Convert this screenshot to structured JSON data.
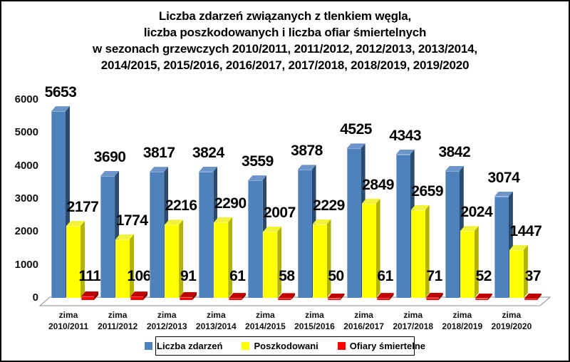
{
  "chart_data": {
    "type": "bar",
    "style": "3d-clustered-column",
    "title_lines": [
      "Liczba zdarzeń związanych z tlenkiem węgla,",
      "liczba poszkodowanych i liczba ofiar śmiertelnych",
      "w sezonach grzewczych 2010/2011, 2011/2012, 2012/2013, 2013/2014,",
      "2014/2015, 2015/2016, 2016/2017, 2017/2018, 2018/2019, 2019/2020"
    ],
    "categories": [
      {
        "line1": "zima",
        "line2": "2010/2011"
      },
      {
        "line1": "zima",
        "line2": "2011/2012"
      },
      {
        "line1": "zima",
        "line2": "2012/2013"
      },
      {
        "line1": "zima",
        "line2": "2013/2014"
      },
      {
        "line1": "zima",
        "line2": "2014/2015"
      },
      {
        "line1": "zima",
        "line2": "2015/2016"
      },
      {
        "line1": "zima",
        "line2": "2016/2017"
      },
      {
        "line1": "zima",
        "line2": "2017/2018"
      },
      {
        "line1": "zima",
        "line2": "2018/2019"
      },
      {
        "line1": "zima",
        "line2": "2019/2020"
      }
    ],
    "series": [
      {
        "name": "Liczba zdarzeń",
        "key": "liczba-zdarzen",
        "color": "#4f81bd",
        "color_top": "#6d95c9",
        "color_side": "#2b4a6f",
        "values": [
          5653,
          3690,
          3817,
          3824,
          3559,
          3878,
          4525,
          4343,
          3842,
          3074
        ]
      },
      {
        "name": "Poszkodowani",
        "key": "poszkodowani",
        "color": "#ffff00",
        "color_top": "#f2f23a",
        "color_side": "#b2b200",
        "values": [
          2177,
          1774,
          2216,
          2290,
          2007,
          2229,
          2849,
          2659,
          2024,
          1447
        ]
      },
      {
        "name": "Ofiary śmiertelne",
        "key": "ofiary-smiertelne",
        "color": "#ff0000",
        "color_top": "#c00000",
        "color_side": "#8b0000",
        "values": [
          111,
          106,
          91,
          61,
          58,
          50,
          61,
          71,
          52,
          37
        ]
      }
    ],
    "y_ticks": [
      0,
      1000,
      2000,
      3000,
      4000,
      5000,
      6000
    ],
    "ylim": [
      0,
      6000
    ],
    "grid": false,
    "data_labels": true,
    "legend_position": "bottom",
    "axis_color": "#8c8c8c",
    "background_color": "#ffffff"
  }
}
